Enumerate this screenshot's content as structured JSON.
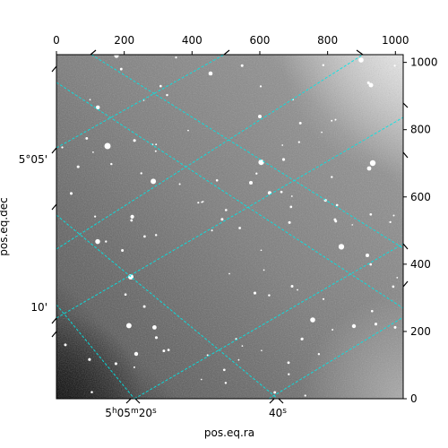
{
  "chart_data": {
    "type": "heatmap",
    "title": "",
    "xlabel": "pos.eq.ra",
    "ylabel": "pos.eq.dec",
    "pixel_axis_x": {
      "range": [
        0,
        1023
      ],
      "ticks": [
        0,
        200,
        400,
        600,
        800,
        1000
      ],
      "tick_labels": [
        "0",
        "200",
        "400",
        "600",
        "800",
        "1000"
      ]
    },
    "pixel_axis_y": {
      "range": [
        0,
        1023
      ],
      "ticks": [
        0,
        200,
        400,
        600,
        800,
        1000
      ],
      "tick_labels": [
        "0",
        "200",
        "400",
        "600",
        "800",
        "1000"
      ]
    },
    "ra_ticks": [
      {
        "label_hms": [
          "5",
          "h",
          "05",
          "m",
          "20",
          "s"
        ]
      },
      {
        "label_hms": [
          "",
          "",
          "",
          "",
          "40",
          "s"
        ]
      }
    ],
    "dec_ticks": [
      {
        "label": "5°05'"
      },
      {
        "label": "10'"
      }
    ],
    "grid": true,
    "grid_color": "#00e5e5",
    "colormap": "gray",
    "background_gray_range": [
      "#1a1a1a",
      "#d8d8d8"
    ]
  }
}
